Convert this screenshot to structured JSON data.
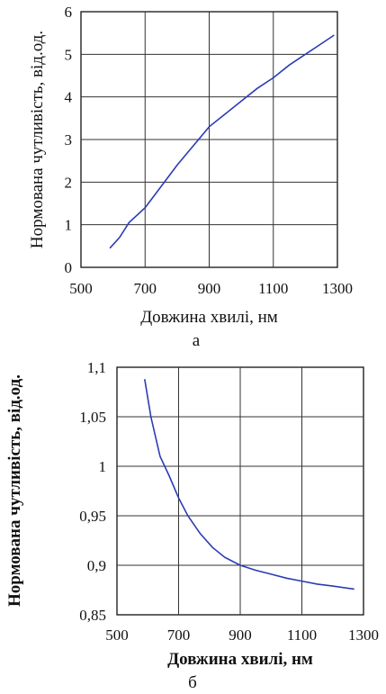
{
  "chart_data": [
    {
      "type": "line",
      "panel_label": "а",
      "xlabel": "Довжина хвилі, нм",
      "ylabel": "Нормована чутливість, від.од.",
      "xlim": [
        500,
        1300
      ],
      "ylim": [
        0,
        6
      ],
      "xticks": [
        "500",
        "700",
        "900",
        "1100",
        "1300"
      ],
      "yticks": [
        "0",
        "1",
        "2",
        "3",
        "4",
        "5",
        "6"
      ],
      "grid": true,
      "line_color": "#2a3cb5",
      "series": [
        {
          "x": [
            590,
            620,
            650,
            700,
            750,
            800,
            850,
            900,
            950,
            1000,
            1050,
            1100,
            1150,
            1200,
            1250,
            1290
          ],
          "y": [
            0.45,
            0.7,
            1.05,
            1.4,
            1.9,
            2.4,
            2.85,
            3.3,
            3.6,
            3.9,
            4.2,
            4.45,
            4.75,
            5.0,
            5.25,
            5.45
          ]
        }
      ]
    },
    {
      "type": "line",
      "panel_label": "б",
      "xlabel": "Довжина хвилі, нм",
      "ylabel": "Нормована чутливість, від.од.",
      "xlim": [
        500,
        1300
      ],
      "ylim": [
        0.85,
        1.1
      ],
      "xticks": [
        "500",
        "700",
        "900",
        "1100",
        "1300"
      ],
      "yticks": [
        "0,85",
        "0,9",
        "0,95",
        "1",
        "1,05",
        "1,1"
      ],
      "grid": true,
      "line_color": "#2a3cb5",
      "series": [
        {
          "x": [
            590,
            610,
            640,
            670,
            700,
            730,
            770,
            810,
            850,
            900,
            950,
            1000,
            1050,
            1100,
            1150,
            1200,
            1270
          ],
          "y": [
            1.088,
            1.05,
            1.01,
            0.99,
            0.968,
            0.95,
            0.932,
            0.918,
            0.908,
            0.9,
            0.895,
            0.891,
            0.887,
            0.884,
            0.881,
            0.879,
            0.876
          ]
        }
      ]
    }
  ]
}
